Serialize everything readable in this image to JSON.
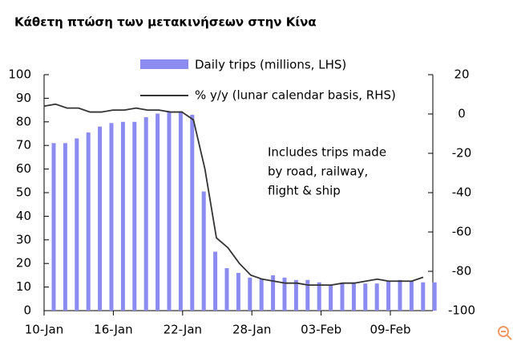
{
  "chart_data": {
    "type": "bar",
    "title": "Κάθετη πτώση των μετακινήσεων στην Κίνα",
    "annotation": [
      "Includes trips made",
      "by road, railway,",
      "flight & ship"
    ],
    "categories": [
      "10-Jan",
      null,
      null,
      null,
      null,
      null,
      "16-Jan",
      null,
      null,
      null,
      null,
      null,
      "22-Jan",
      null,
      null,
      null,
      null,
      null,
      "28-Jan",
      null,
      null,
      null,
      null,
      null,
      "03-Feb",
      null,
      null,
      null,
      null,
      null,
      "09-Feb",
      null,
      null,
      null
    ],
    "series": [
      {
        "name": "Daily trips (millions, LHS)",
        "type": "bar",
        "color": "#8c8cf0",
        "values": [
          71,
          71,
          73,
          75.5,
          78,
          79.5,
          80,
          80,
          82,
          83.5,
          84.5,
          84.5,
          83,
          50.5,
          25,
          18,
          16,
          14,
          13.5,
          15,
          14,
          13,
          13,
          12,
          11,
          11.5,
          12,
          11.5,
          11.5,
          12.5,
          13,
          12.5,
          12,
          12
        ]
      },
      {
        "name": "% y/y (lunar calendar basis, RHS)",
        "type": "line",
        "axis": "y2",
        "color": "#333333",
        "values": [
          4,
          5,
          3,
          3,
          1,
          1,
          2,
          2,
          3,
          2,
          2,
          1,
          1,
          -3,
          -28,
          -63,
          -68,
          -76,
          -82,
          -84,
          -85,
          -86,
          -86,
          -87,
          -87,
          -87,
          -86,
          -86,
          -85,
          -84,
          -85,
          -85,
          -85,
          -83
        ]
      }
    ],
    "ylim": [
      0,
      100
    ],
    "yticks": [
      0,
      10,
      20,
      30,
      40,
      50,
      60,
      70,
      80,
      90,
      100
    ],
    "y2lim": [
      -100,
      20
    ],
    "y2ticks": [
      -100,
      -80,
      -60,
      -40,
      -20,
      0,
      20
    ]
  }
}
